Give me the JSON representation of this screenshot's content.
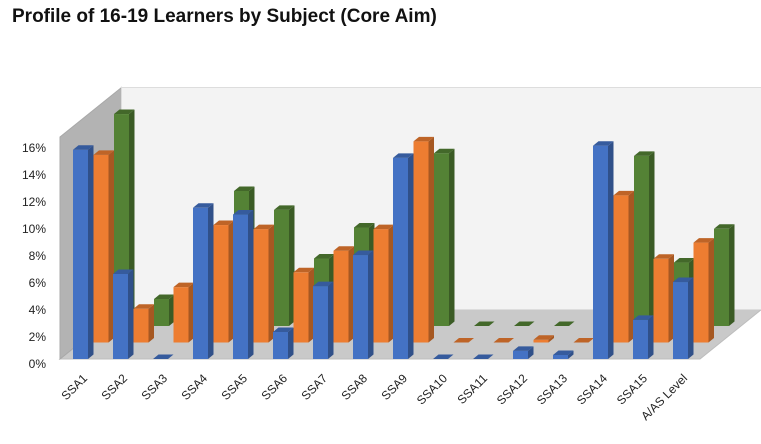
{
  "chart_data": {
    "type": "bar",
    "title": "Profile of 16-19 Learners by Subject (Core Aim)",
    "xlabel": "",
    "ylabel": "",
    "categories": [
      "SSA1",
      "SSA2",
      "SSA3",
      "SSA4",
      "SSA5",
      "SSA6",
      "SSA7",
      "SSA8",
      "SSA9",
      "SSA10",
      "SSA11",
      "SSA12",
      "SSA13",
      "SSA14",
      "SSA15",
      "A/AS Level"
    ],
    "yticks": [
      "0%",
      "2%",
      "4%",
      "6%",
      "8%",
      "10%",
      "12%",
      "14%",
      "16%"
    ],
    "ylim": [
      0,
      0.16
    ],
    "grid": false,
    "legend": "none",
    "series": [
      {
        "color": "#4472C4",
        "values": [
          0.155,
          0.063,
          0.0,
          0.112,
          0.107,
          0.02,
          0.054,
          0.077,
          0.149,
          0.0,
          0.0,
          0.006,
          0.003,
          0.158,
          0.029,
          0.057
        ]
      },
      {
        "color": "#ED7D31",
        "values": [
          0.139,
          0.025,
          0.041,
          0.087,
          0.084,
          0.052,
          0.068,
          0.084,
          0.149,
          0.0,
          0.0,
          0.002,
          0.0,
          0.109,
          0.062,
          0.074
        ]
      },
      {
        "color": "#548235",
        "values": [
          0.157,
          0.02,
          0.0,
          0.1,
          0.086,
          0.05,
          0.073,
          0.077,
          0.128,
          0.0,
          0.0,
          0.0,
          0.0,
          0.126,
          0.047,
          0.072
        ]
      }
    ]
  }
}
